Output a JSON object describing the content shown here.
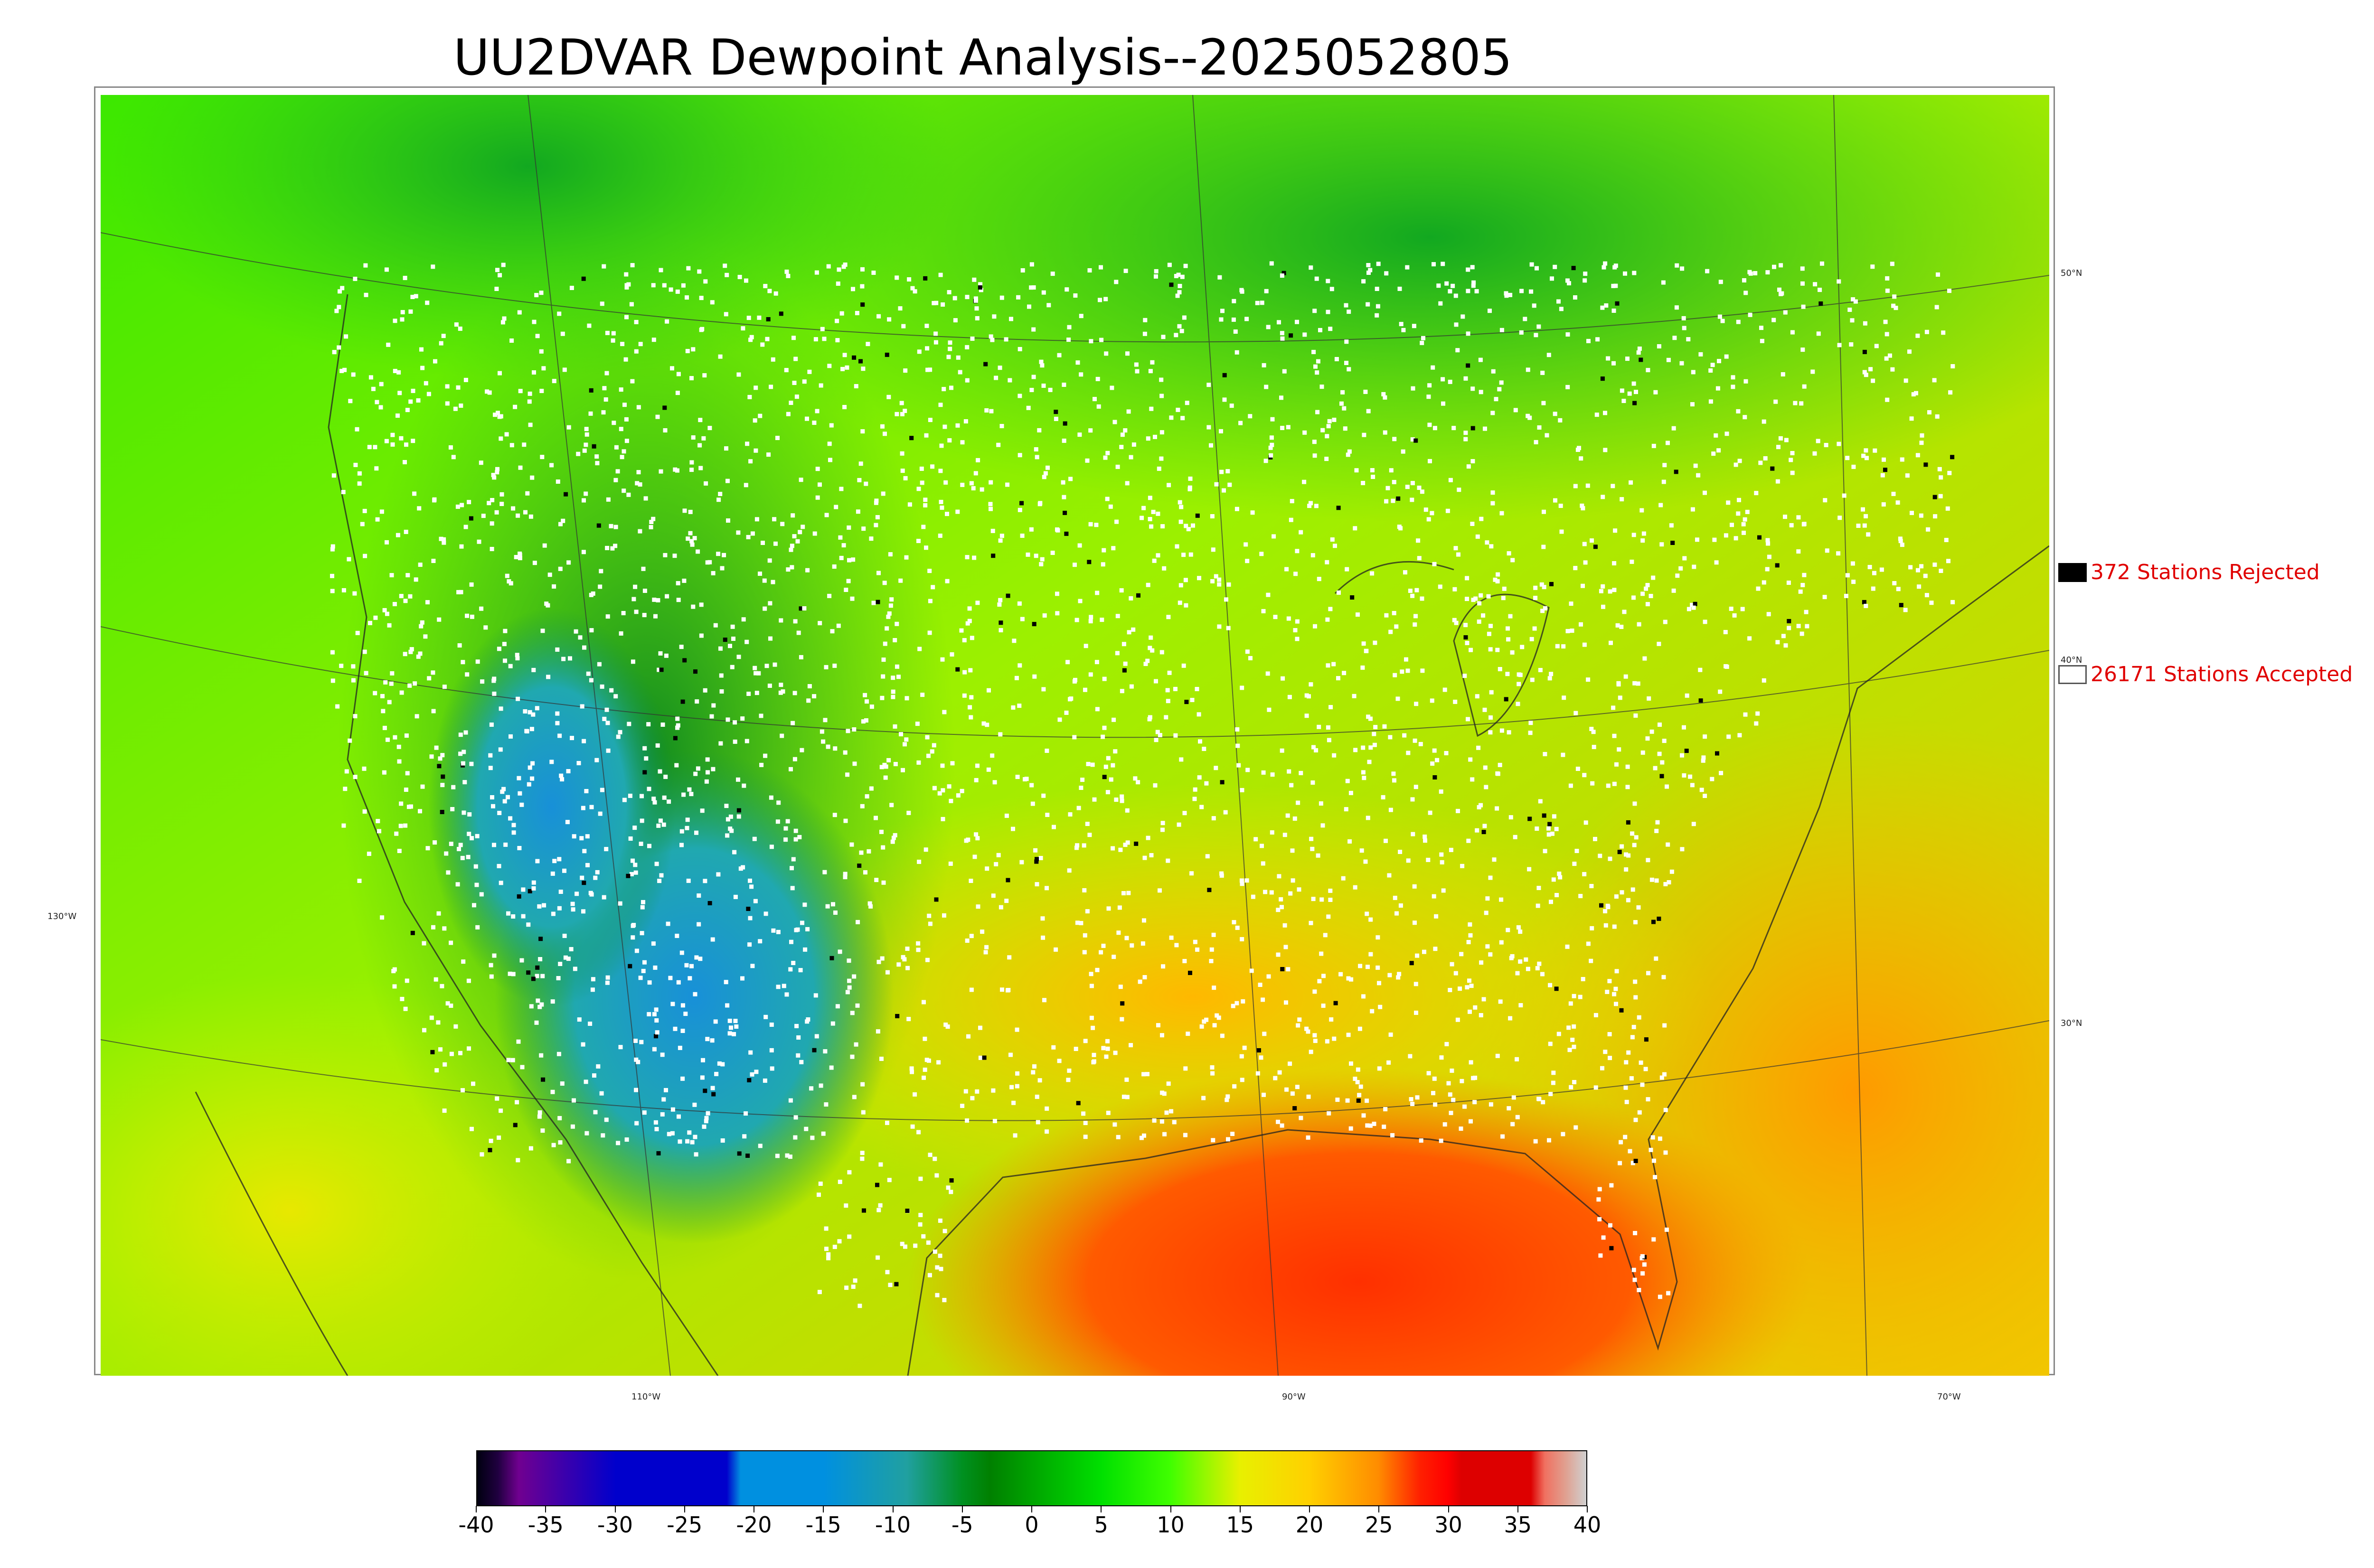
{
  "title": "UU2DVAR Dewpoint Analysis--2025052805",
  "legend": {
    "rejected": {
      "label": "372 Stations Rejected",
      "swatch_color": "#000000"
    },
    "accepted": {
      "label": "26171 Stations Accepted",
      "swatch_color": "#ffffff"
    }
  },
  "graticule": {
    "latitude_labels": [
      "50°N",
      "40°N",
      "30°N"
    ],
    "longitude_labels": [
      "130°W",
      "110°W",
      "90°W",
      "70°W"
    ]
  },
  "colorbar": {
    "ticks": [
      "-40",
      "-35",
      "-30",
      "-25",
      "-20",
      "-15",
      "-10",
      "-5",
      "0",
      "5",
      "10",
      "15",
      "20",
      "25",
      "30",
      "35",
      "40"
    ],
    "range": [
      -40,
      40
    ],
    "stops": [
      {
        "value": -40,
        "color": "#000010"
      },
      {
        "value": -38.5,
        "color": "#200040"
      },
      {
        "value": -37,
        "color": "#700090"
      },
      {
        "value": -30,
        "color": "#0000cc"
      },
      {
        "value": -22,
        "color": "#0000cc"
      },
      {
        "value": -21,
        "color": "#0090e0"
      },
      {
        "value": -15,
        "color": "#0090e0"
      },
      {
        "value": -9,
        "color": "#20a0a0"
      },
      {
        "value": -5,
        "color": "#009020"
      },
      {
        "value": -3,
        "color": "#008000"
      },
      {
        "value": 5,
        "color": "#00e000"
      },
      {
        "value": 10,
        "color": "#40ff00"
      },
      {
        "value": 15,
        "color": "#e8f000"
      },
      {
        "value": 20,
        "color": "#ffd000"
      },
      {
        "value": 25,
        "color": "#ff8c00"
      },
      {
        "value": 28,
        "color": "#ff2000"
      },
      {
        "value": 30,
        "color": "#ff0000"
      },
      {
        "value": 31,
        "color": "#dd0000"
      },
      {
        "value": 36,
        "color": "#dd0000"
      },
      {
        "value": 37,
        "color": "#f07060"
      },
      {
        "value": 38.5,
        "color": "#e0a090"
      },
      {
        "value": 40,
        "color": "#d0d0d0"
      }
    ]
  }
}
